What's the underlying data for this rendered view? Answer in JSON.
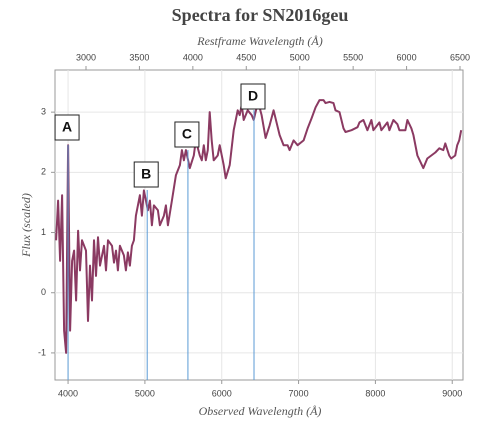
{
  "chart_data": {
    "type": "line",
    "title": "Spectra for SN2016geu",
    "x2_label": "Restframe Wavelength (Å)",
    "x_label": "Observed Wavelength (Å)",
    "y_label": "Flux (scaled)",
    "color": "#8b3a62",
    "grid": true,
    "xlim": [
      3830,
      9140
    ],
    "xticks": [
      4000,
      5000,
      6000,
      7000,
      8000,
      9000
    ],
    "x2lim": [
      2710,
      6528
    ],
    "x2ticks": [
      3000,
      3500,
      4000,
      4500,
      5000,
      5500,
      6000,
      6500
    ],
    "ylim": [
      -1.45,
      3.7
    ],
    "yticks": [
      -1,
      0,
      1,
      2,
      3
    ],
    "annotations": [
      {
        "label": "A",
        "x": 4000
      },
      {
        "label": "B",
        "x": 5030
      },
      {
        "label": "C",
        "x": 5560
      },
      {
        "label": "D",
        "x": 6420
      }
    ],
    "annotation_color": "#5b9bd5",
    "x": [
      3844,
      3870,
      3896,
      3922,
      3948,
      3974,
      4000,
      4026,
      4052,
      4078,
      4104,
      4130,
      4156,
      4182,
      4234,
      4260,
      4286,
      4312,
      4338,
      4364,
      4390,
      4416,
      4468,
      4494,
      4520,
      4572,
      4598,
      4624,
      4649,
      4675,
      4727,
      4753,
      4779,
      4805,
      4831,
      4857,
      4883,
      4935,
      4961,
      4987,
      5039,
      5065,
      5091,
      5117,
      5169,
      5195,
      5247,
      5273,
      5299,
      5351,
      5403,
      5455,
      5481,
      5507,
      5533,
      5585,
      5637,
      5663,
      5715,
      5741,
      5767,
      5793,
      5819,
      5844,
      5870,
      5896,
      5948,
      5974,
      6026,
      6052,
      6104,
      6156,
      6208,
      6234,
      6260,
      6286,
      6338,
      6390,
      6416,
      6468,
      6494,
      6519,
      6571,
      6623,
      6675,
      6753,
      6805,
      6857,
      6883,
      6935,
      6987,
      7065,
      7117,
      7169,
      7221,
      7273,
      7325,
      7351,
      7403,
      7455,
      7481,
      7533,
      7585,
      7611,
      7689,
      7767,
      7793,
      7844,
      7896,
      7948,
      7974,
      8052,
      8078,
      8156,
      8182,
      8234,
      8286,
      8312,
      8390,
      8416,
      8468,
      8494,
      8546,
      8623,
      8675,
      8727,
      8779,
      8831,
      8883,
      8909,
      8961,
      8987,
      9039,
      9065,
      9091,
      9117
    ],
    "values": [
      0.87,
      1.53,
      0.53,
      1.62,
      -0.63,
      -1.0,
      2.45,
      -0.63,
      0.53,
      0.7,
      -0.13,
      1.03,
      0.37,
      0.87,
      0.7,
      -0.47,
      0.45,
      -0.13,
      0.87,
      0.28,
      0.92,
      0.45,
      0.78,
      0.37,
      0.87,
      0.78,
      0.5,
      0.7,
      0.37,
      0.78,
      0.62,
      0.37,
      0.67,
      0.45,
      0.78,
      0.87,
      1.28,
      1.62,
      1.28,
      1.7,
      1.37,
      1.53,
      1.12,
      1.45,
      1.37,
      1.12,
      1.28,
      1.45,
      1.12,
      1.53,
      1.95,
      2.12,
      2.37,
      2.2,
      2.37,
      2.07,
      2.28,
      2.53,
      2.28,
      2.2,
      2.45,
      2.2,
      2.37,
      3.0,
      2.53,
      2.2,
      2.28,
      2.45,
      2.12,
      1.9,
      2.12,
      2.7,
      3.03,
      2.95,
      3.12,
      2.87,
      3.03,
      2.95,
      2.87,
      3.15,
      3.07,
      2.95,
      2.57,
      2.78,
      3.03,
      2.62,
      2.45,
      2.45,
      2.37,
      2.53,
      2.45,
      2.53,
      2.73,
      2.9,
      3.08,
      3.2,
      3.2,
      3.15,
      3.17,
      3.15,
      3.03,
      3.0,
      2.73,
      2.67,
      2.7,
      2.75,
      2.83,
      2.87,
      2.7,
      2.87,
      2.7,
      2.83,
      2.7,
      2.83,
      2.7,
      2.87,
      2.8,
      2.7,
      2.7,
      2.87,
      2.73,
      2.62,
      2.28,
      2.07,
      2.23,
      2.28,
      2.33,
      2.4,
      2.37,
      2.48,
      2.28,
      2.23,
      2.28,
      2.45,
      2.53,
      2.7
    ]
  }
}
